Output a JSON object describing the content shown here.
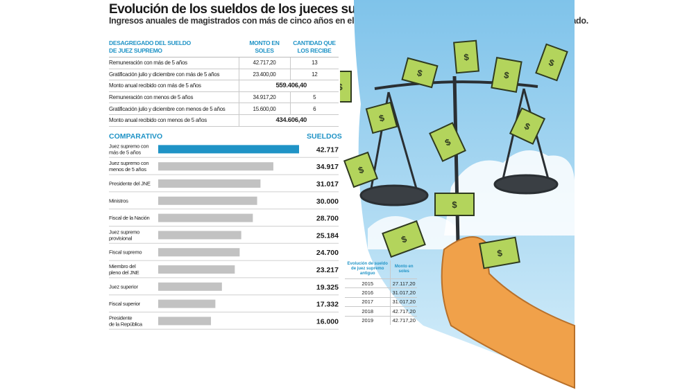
{
  "header": {
    "title": "Evolución de los sueldos de los jueces supremos",
    "subtitle": "Ingresos anuales de magistrados con más de cinco años en el cargo superan a los de otros altos funcionarios del Estado."
  },
  "breakdown": {
    "headers": [
      "DESAGREGADO DEL SUELDO DE JUEZ SUPREMO",
      "MONTO EN SOLES",
      "CANTIDAD QUE LOS RECIBE"
    ],
    "rows": [
      {
        "label": "Remuneración con más de 5 años",
        "amount": "42.717,20",
        "count": "13"
      },
      {
        "label": "Gratificación julio y diciembre con más de 5 años",
        "amount": "23.400,00",
        "count": "12"
      },
      {
        "label": "Monto anual recibido con más de 5 años",
        "total": "559.406,40"
      },
      {
        "label": "Remuneración con menos de 5 años",
        "amount": "34.917,20",
        "count": "5"
      },
      {
        "label": "Gratificación julio y diciembre con menos de 5 años",
        "amount": "15.600,00",
        "count": "6"
      },
      {
        "label": "Monto anual recibido con menos de 5 años",
        "total": "434.606,40"
      }
    ]
  },
  "comparativo": {
    "heading": "COMPARATIVO",
    "value_heading": "SUELDOS"
  },
  "chart_data": {
    "type": "bar",
    "orientation": "horizontal",
    "title": "COMPARATIVO",
    "value_label": "SUELDOS",
    "categories": [
      [
        "Juez supremo con",
        "más de 5 años"
      ],
      [
        "Juez supremo con",
        "menos de 5 años"
      ],
      [
        "Presidente del JNE"
      ],
      [
        "Ministros"
      ],
      [
        "Fiscal de la Nación"
      ],
      [
        "Juez supremo",
        "provisional"
      ],
      [
        "Fiscal supremo"
      ],
      [
        "Miembro del",
        "pleno del JNE"
      ],
      [
        "Juez superior"
      ],
      [
        "Fiscal superior"
      ],
      [
        "Presidente",
        "de la República"
      ]
    ],
    "values": [
      42717,
      34917,
      31017,
      30000,
      28700,
      25184,
      24700,
      23217,
      19325,
      17332,
      16000
    ],
    "value_labels": [
      "42.717",
      "34.917",
      "31.017",
      "30.000",
      "28.700",
      "25.184",
      "24.700",
      "23.217",
      "19.325",
      "17.332",
      "16.000"
    ],
    "highlight_color": "#1f93c6",
    "bar_color": "#c2c2c2",
    "xlim": [
      0,
      42717
    ]
  },
  "yearly": {
    "headers": [
      "Evolución de sueldo de juez supremo antiguo",
      "Monto en soles"
    ],
    "rows": [
      {
        "year": "2015",
        "amount": "27.117,20"
      },
      {
        "year": "2016",
        "amount": "31.017,20"
      },
      {
        "year": "2017",
        "amount": "31.017,20"
      },
      {
        "year": "2018",
        "amount": "42.717,20"
      },
      {
        "year": "2019",
        "amount": "42.717,20"
      }
    ]
  },
  "illustration": {
    "description_icons": [
      "scales-of-justice-icon",
      "dollar-bill-icon",
      "hand-icon"
    ],
    "bill_symbol": "$",
    "sky_color": "#a9d8f0",
    "money_color": "#b3d45c",
    "arm_color": "#f0a14a"
  }
}
